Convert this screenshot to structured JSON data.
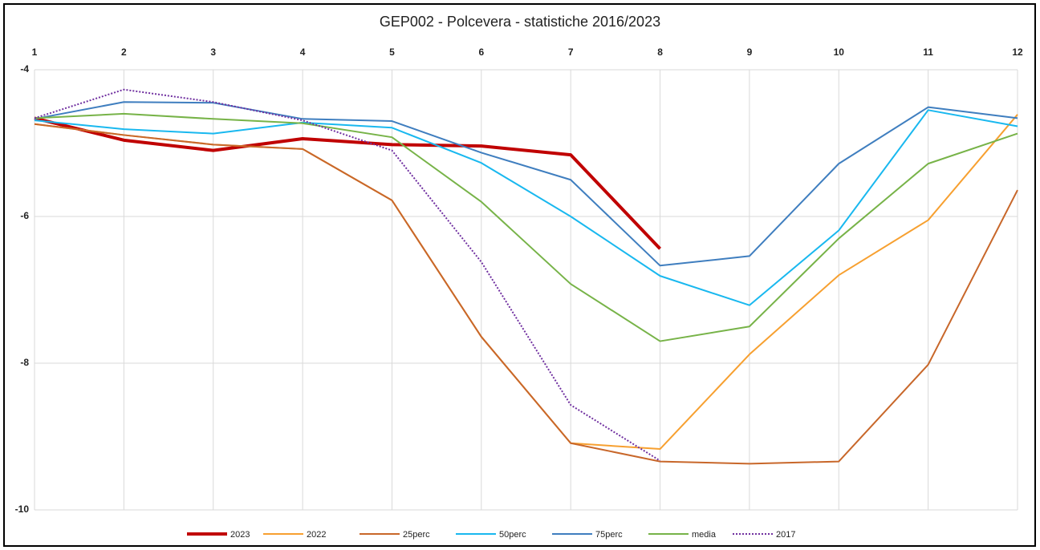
{
  "chart_data": {
    "type": "line",
    "title": "GEP002  - Polcevera - statistiche 2016/2023",
    "categories": [
      "1",
      "2",
      "3",
      "4",
      "5",
      "6",
      "7",
      "8",
      "9",
      "10",
      "11",
      "12"
    ],
    "ylim": [
      -10,
      -4
    ],
    "yticks": [
      -4,
      -6,
      -8,
      -10
    ],
    "grid": true,
    "series": [
      {
        "name": "2023",
        "color": "#c00000",
        "width": 4,
        "values": [
          -4.66,
          -4.96,
          -5.1,
          -4.94,
          -5.02,
          -5.04,
          -5.16,
          -6.44,
          null,
          null,
          null,
          null
        ]
      },
      {
        "name": "2022",
        "color": "#f7a030",
        "width": 2,
        "values": [
          -4.74,
          -4.89,
          -5.02,
          -5.08,
          -5.78,
          -7.64,
          -9.09,
          -9.17,
          -7.88,
          -6.8,
          -6.05,
          -4.61
        ]
      },
      {
        "name": "25perc",
        "color": "#c8672a",
        "width": 2,
        "values": [
          -4.74,
          -4.89,
          -5.02,
          -5.08,
          -5.78,
          -7.64,
          -9.09,
          -9.34,
          -9.37,
          -9.34,
          -8.02,
          -5.64
        ]
      },
      {
        "name": "50perc",
        "color": "#19b8ef",
        "width": 2,
        "values": [
          -4.69,
          -4.81,
          -4.87,
          -4.72,
          -4.79,
          -5.27,
          -6.0,
          -6.81,
          -7.21,
          -6.19,
          -4.55,
          -4.77
        ]
      },
      {
        "name": "75perc",
        "color": "#3f7ebf",
        "width": 2,
        "values": [
          -4.67,
          -4.44,
          -4.45,
          -4.67,
          -4.7,
          -5.13,
          -5.5,
          -6.67,
          -6.54,
          -5.28,
          -4.51,
          -4.66
        ]
      },
      {
        "name": "media",
        "color": "#77b348",
        "width": 2,
        "values": [
          -4.66,
          -4.6,
          -4.67,
          -4.73,
          -4.92,
          -5.8,
          -6.92,
          -7.7,
          -7.5,
          -6.3,
          -5.28,
          -4.87
        ]
      },
      {
        "name": "2017",
        "color": "#7030a0",
        "width": 2,
        "dash": true,
        "values": [
          -4.66,
          -4.27,
          -4.44,
          -4.69,
          -5.1,
          -6.62,
          -8.57,
          -9.33,
          null,
          null,
          null,
          null
        ]
      }
    ]
  }
}
